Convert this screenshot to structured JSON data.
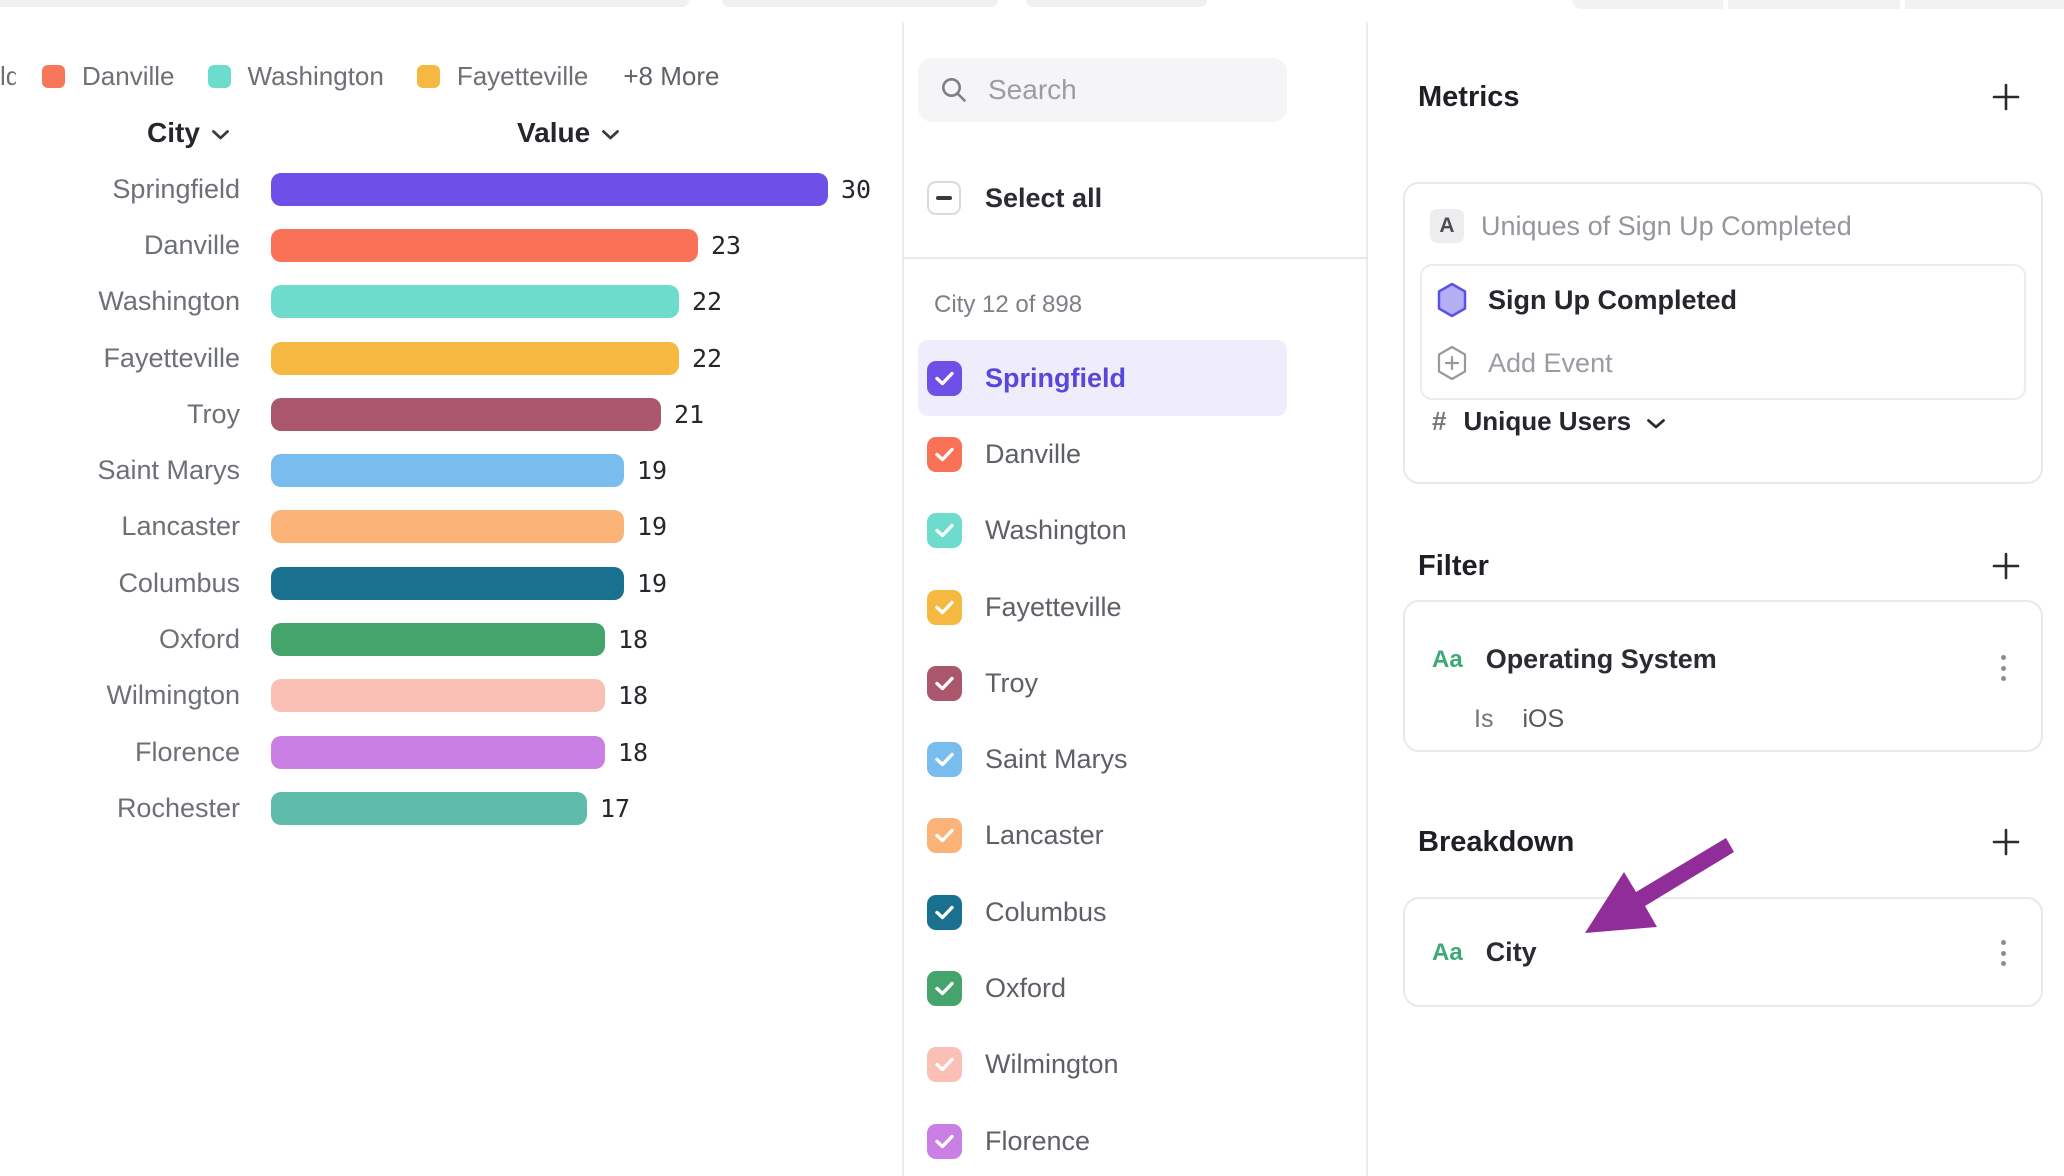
{
  "legend": {
    "clipped_label": "ld",
    "items": [
      {
        "label": "Danville",
        "color": "#F87659"
      },
      {
        "label": "Washington",
        "color": "#6EDCCD"
      },
      {
        "label": "Fayetteville",
        "color": "#F5B942"
      }
    ],
    "more": "+8 More"
  },
  "table_header": {
    "city": "City",
    "value": "Value"
  },
  "chart_data": {
    "type": "bar",
    "title": "",
    "xlabel": "",
    "ylabel": "",
    "orientation": "horizontal",
    "xlim": [
      0,
      30
    ],
    "categories": [
      "Springfield",
      "Danville",
      "Washington",
      "Fayetteville",
      "Troy",
      "Saint Marys",
      "Lancaster",
      "Columbus",
      "Oxford",
      "Wilmington",
      "Florence",
      "Rochester"
    ],
    "values": [
      30,
      23,
      22,
      22,
      21,
      19,
      19,
      19,
      18,
      18,
      18,
      17
    ],
    "colors": [
      "#6E4FE8",
      "#F97257",
      "#6EDCCD",
      "#F5B942",
      "#AA576D",
      "#79BDEE",
      "#FCB378",
      "#19708F",
      "#44A46C",
      "#FBC0B5",
      "#C97FE3",
      "#5FBCAB"
    ]
  },
  "selector": {
    "search_placeholder": "Search",
    "select_all_label": "Select all",
    "count_label": "City 12 of 898",
    "items": [
      {
        "label": "Springfield",
        "color": "#6E4FE8",
        "selected": true
      },
      {
        "label": "Danville",
        "color": "#F97257",
        "selected": false
      },
      {
        "label": "Washington",
        "color": "#6EDCCD",
        "selected": false
      },
      {
        "label": "Fayetteville",
        "color": "#F5B942",
        "selected": false
      },
      {
        "label": "Troy",
        "color": "#AA576D",
        "selected": false
      },
      {
        "label": "Saint Marys",
        "color": "#79BDEE",
        "selected": false
      },
      {
        "label": "Lancaster",
        "color": "#FCB378",
        "selected": false
      },
      {
        "label": "Columbus",
        "color": "#19708F",
        "selected": false
      },
      {
        "label": "Oxford",
        "color": "#44A46C",
        "selected": false
      },
      {
        "label": "Wilmington",
        "color": "#FBC0B5",
        "selected": false
      },
      {
        "label": "Florence",
        "color": "#C97FE3",
        "selected": false
      }
    ]
  },
  "inspector": {
    "metrics": {
      "title": "Metrics",
      "badge": "A",
      "summary": "Uniques of Sign Up Completed",
      "event_label": "Sign Up Completed",
      "add_event_label": "Add Event",
      "measure_prefix": "#",
      "measure_label": "Unique Users"
    },
    "filter": {
      "title": "Filter",
      "property_icon": "Aa",
      "property": "Operating System",
      "operator": "Is",
      "value": "iOS"
    },
    "breakdown": {
      "title": "Breakdown",
      "property_icon": "Aa",
      "property": "City"
    }
  },
  "annotation": {
    "arrow_color": "#902D98"
  }
}
